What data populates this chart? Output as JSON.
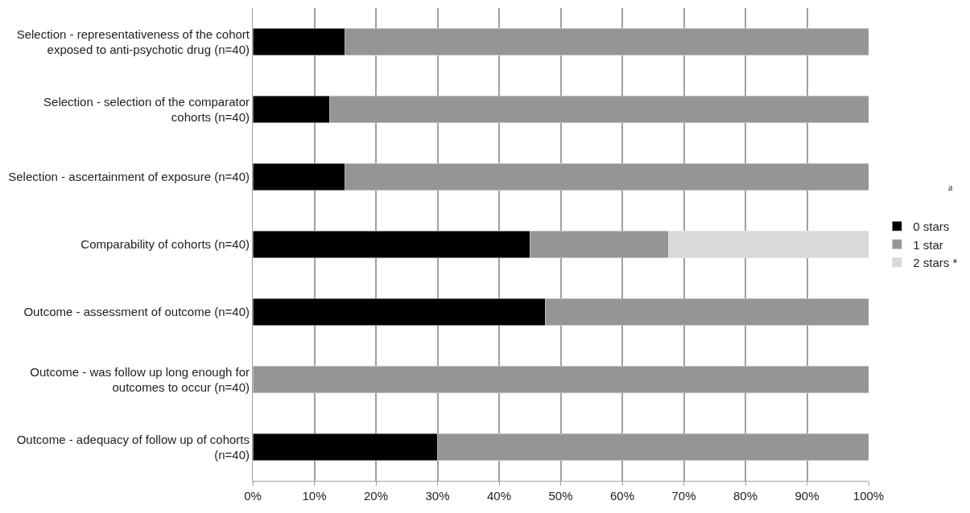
{
  "chart_data": {
    "type": "bar",
    "orientation": "horizontal",
    "stacked": true,
    "categories": [
      "Selection - representativeness of the cohort exposed to anti-psychotic drug (n=40)",
      "Selection - selection of the comparator cohorts (n=40)",
      "Selection - ascertainment of exposure (n=40)",
      "Comparability of cohorts (n=40)",
      "Outcome - assessment of outcome (n=40)",
      "Outcome - was follow up long enough for outcomes to occur (n=40)",
      "Outcome - adequacy of follow up of cohorts (n=40)"
    ],
    "series": [
      {
        "name": "0 stars",
        "color": "#000000",
        "values": [
          15,
          12.5,
          15,
          45,
          47.5,
          null,
          30
        ]
      },
      {
        "name": "1 star",
        "color": "#959595",
        "values": [
          85,
          87.5,
          85,
          22.5,
          52.5,
          100,
          70
        ]
      },
      {
        "name": "2 stars *",
        "color": "#d9d9d9",
        "values": [
          null,
          null,
          null,
          32.5,
          null,
          null,
          null
        ]
      }
    ],
    "xlim": [
      0,
      100
    ],
    "xticks": [
      {
        "value": 0,
        "label": "0%"
      },
      {
        "value": 10,
        "label": "10%"
      },
      {
        "value": 20,
        "label": "20%"
      },
      {
        "value": 30,
        "label": "30%"
      },
      {
        "value": 40,
        "label": "40%"
      },
      {
        "value": 50,
        "label": "50%"
      },
      {
        "value": 60,
        "label": "60%"
      },
      {
        "value": 70,
        "label": "70%"
      },
      {
        "value": 80,
        "label": "80%"
      },
      {
        "value": 90,
        "label": "90%"
      },
      {
        "value": 100,
        "label": "100%"
      }
    ],
    "grid": "x",
    "legend": "right",
    "annotations": [
      "a"
    ]
  }
}
